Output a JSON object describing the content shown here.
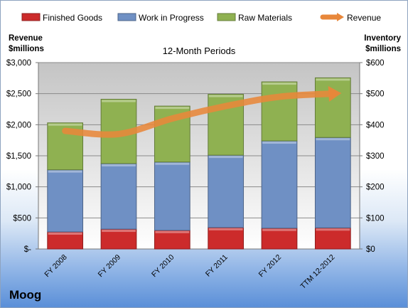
{
  "company": "Moog",
  "chart_data": {
    "type": "bar",
    "subtitle": "12-Month Periods",
    "left_axis_title": [
      "Revenue",
      "$millions"
    ],
    "right_axis_title": [
      "Inventory",
      "$millions"
    ],
    "categories": [
      "FY 2008",
      "FY 2009",
      "FY 2010",
      "FY 2011",
      "FY 2012",
      "TTM 12-2012"
    ],
    "series": [
      {
        "name": "Finished Goods",
        "color": "#cc2b2b",
        "axis": "right",
        "stacked": true,
        "values": [
          55,
          64,
          60,
          69,
          67,
          68
        ]
      },
      {
        "name": "Work in Progress",
        "color": "#6f90c4",
        "axis": "right",
        "stacked": true,
        "values": [
          200,
          211,
          220,
          233,
          281,
          291
        ]
      },
      {
        "name": "Raw Materials",
        "color": "#8fb151",
        "axis": "right",
        "stacked": true,
        "values": [
          151,
          207,
          180,
          196,
          190,
          192
        ]
      },
      {
        "name": "Revenue",
        "color": "#e8873a",
        "axis": "left",
        "type": "line",
        "values": [
          1900,
          1850,
          2100,
          2300,
          2450,
          2500
        ]
      }
    ],
    "left_axis": {
      "min": 0,
      "max": 3000,
      "ticks": [
        0,
        500,
        1000,
        1500,
        2000,
        2500,
        3000
      ],
      "tick_labels": [
        "$-",
        "$500",
        "$1,000",
        "$1,500",
        "$2,000",
        "$2,500",
        "$3,000"
      ]
    },
    "right_axis": {
      "min": 0,
      "max": 600,
      "ticks": [
        0,
        100,
        200,
        300,
        400,
        500,
        600
      ],
      "tick_labels": [
        "$0",
        "$100",
        "$200",
        "$300",
        "$400",
        "$500",
        "$600"
      ]
    },
    "grid": true,
    "legend_position": "top"
  }
}
